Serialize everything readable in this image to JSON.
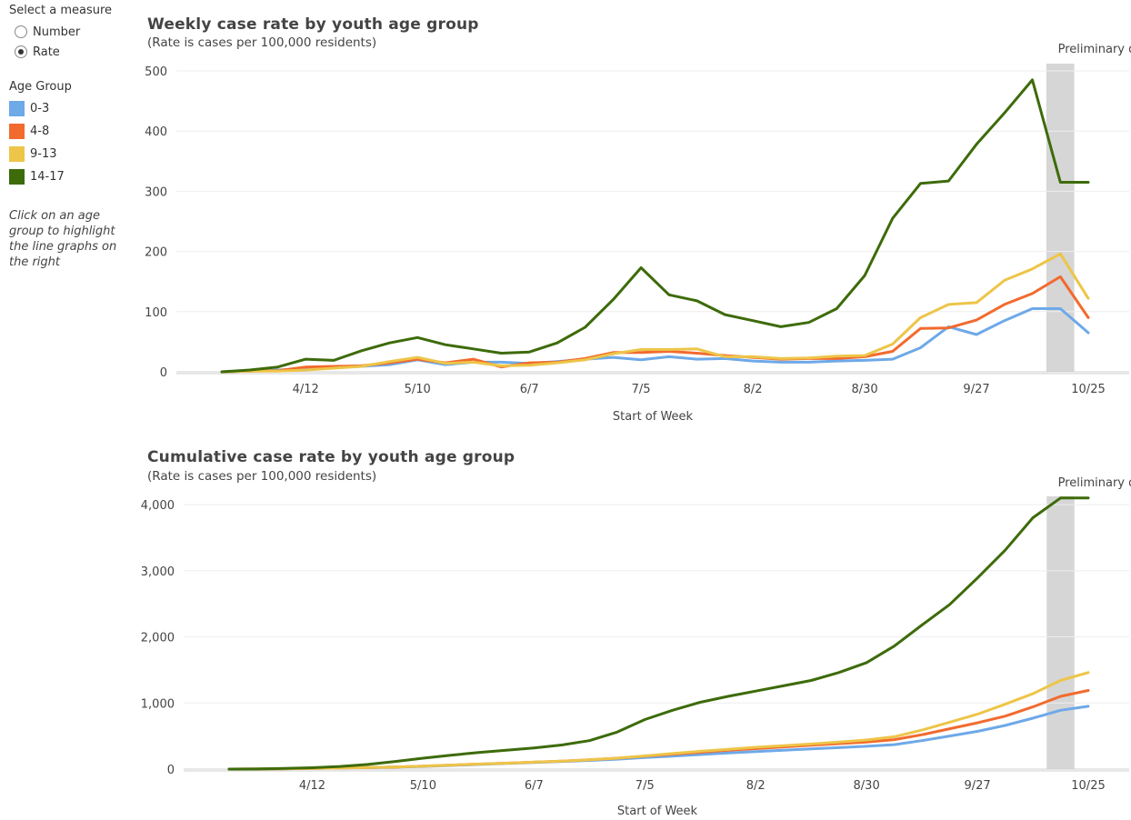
{
  "sidebar": {
    "measure_label": "Select a measure",
    "options": [
      {
        "label": "Number",
        "selected": false
      },
      {
        "label": "Rate",
        "selected": true
      }
    ],
    "age_group_label": "Age Group",
    "note": "Click on an age group to highlight the line graphs on the right"
  },
  "chart_data": [
    {
      "type": "line",
      "title": "Weekly case rate by youth age group",
      "subtitle": "(Rate is cases per 100,000 residents)",
      "xlabel": "Start of Week",
      "ylabel": "",
      "x": [
        "3/22",
        "3/29",
        "4/5",
        "4/12",
        "4/19",
        "4/26",
        "5/3",
        "5/10",
        "5/17",
        "5/24",
        "5/31",
        "6/7",
        "6/14",
        "6/21",
        "6/28",
        "7/5",
        "7/12",
        "7/19",
        "7/26",
        "8/2",
        "8/9",
        "8/16",
        "8/23",
        "8/30",
        "9/6",
        "9/13",
        "9/20",
        "9/27",
        "10/4",
        "10/11",
        "10/18",
        "10/25"
      ],
      "x_ticks": [
        "4/12",
        "5/10",
        "6/7",
        "7/5",
        "8/2",
        "8/30",
        "9/27",
        "10/25"
      ],
      "y_ticks": [
        0,
        100,
        200,
        300,
        400,
        500
      ],
      "ylim": [
        0,
        500
      ],
      "annotation": "Preliminary data",
      "preliminary_from": "10/18",
      "series": [
        {
          "name": "0-3",
          "color": "#6ea9e8",
          "values": [
            0,
            1,
            3,
            5,
            7,
            9,
            12,
            20,
            12,
            16,
            16,
            14,
            17,
            21,
            24,
            20,
            25,
            21,
            22,
            18,
            16,
            16,
            18,
            19,
            21,
            40,
            75,
            62,
            85,
            105,
            105,
            65
          ]
        },
        {
          "name": "4-8",
          "color": "#f26a2e",
          "values": [
            0,
            1,
            2,
            8,
            9,
            10,
            15,
            21,
            15,
            21,
            8,
            15,
            16,
            22,
            32,
            32,
            34,
            31,
            27,
            24,
            21,
            22,
            22,
            25,
            34,
            72,
            73,
            86,
            112,
            130,
            158,
            90
          ]
        },
        {
          "name": "9-13",
          "color": "#edc548",
          "values": [
            0,
            1,
            1,
            3,
            6,
            9,
            17,
            24,
            14,
            16,
            10,
            11,
            15,
            20,
            30,
            37,
            37,
            38,
            25,
            25,
            22,
            23,
            26,
            27,
            46,
            90,
            112,
            115,
            152,
            171,
            196,
            122
          ]
        },
        {
          "name": "14-17",
          "color": "#3d6b0a",
          "values": [
            0,
            3,
            8,
            21,
            19,
            35,
            48,
            57,
            45,
            38,
            31,
            33,
            48,
            74,
            120,
            173,
            128,
            118,
            95,
            85,
            75,
            82,
            105,
            160,
            255,
            313,
            317,
            378,
            430,
            485,
            315,
            315
          ]
        }
      ]
    },
    {
      "type": "line",
      "title": "Cumulative case rate by youth age group",
      "subtitle": "(Rate is cases per 100,000 residents)",
      "xlabel": "Start of Week",
      "ylabel": "",
      "x": [
        "3/22",
        "3/29",
        "4/5",
        "4/12",
        "4/19",
        "4/26",
        "5/3",
        "5/10",
        "5/17",
        "5/24",
        "5/31",
        "6/7",
        "6/14",
        "6/21",
        "6/28",
        "7/5",
        "7/12",
        "7/19",
        "7/26",
        "8/2",
        "8/9",
        "8/16",
        "8/23",
        "8/30",
        "9/6",
        "9/13",
        "9/20",
        "9/27",
        "10/4",
        "10/11",
        "10/18",
        "10/25"
      ],
      "x_ticks": [
        "4/12",
        "5/10",
        "6/7",
        "7/5",
        "8/2",
        "8/30",
        "9/27",
        "10/25"
      ],
      "y_ticks": [
        0,
        1000,
        2000,
        3000,
        4000
      ],
      "y_tick_labels": [
        "0",
        "1,000",
        "2,000",
        "3,000",
        "4,000"
      ],
      "ylim": [
        0,
        4400
      ],
      "annotation": "Preliminary data",
      "preliminary_from": "10/18",
      "series": [
        {
          "name": "0-3",
          "color": "#6ea9e8",
          "values": [
            0,
            2,
            5,
            10,
            15,
            22,
            30,
            40,
            55,
            70,
            85,
            100,
            115,
            130,
            150,
            175,
            195,
            220,
            245,
            265,
            285,
            305,
            325,
            345,
            370,
            430,
            500,
            570,
            660,
            770,
            890,
            950
          ]
        },
        {
          "name": "4-8",
          "color": "#f26a2e",
          "values": [
            0,
            2,
            5,
            10,
            16,
            24,
            32,
            45,
            60,
            75,
            90,
            105,
            120,
            140,
            165,
            195,
            225,
            255,
            285,
            310,
            335,
            360,
            385,
            410,
            445,
            520,
            610,
            700,
            800,
            940,
            1100,
            1190
          ]
        },
        {
          "name": "9-13",
          "color": "#edc548",
          "values": [
            0,
            2,
            5,
            10,
            16,
            24,
            32,
            45,
            60,
            75,
            90,
            105,
            120,
            140,
            165,
            200,
            235,
            270,
            300,
            330,
            355,
            380,
            410,
            440,
            490,
            590,
            710,
            830,
            980,
            1140,
            1340,
            1460
          ]
        },
        {
          "name": "14-17",
          "color": "#3d6b0a",
          "values": [
            0,
            2,
            10,
            20,
            40,
            70,
            115,
            165,
            210,
            250,
            285,
            320,
            365,
            430,
            560,
            750,
            890,
            1010,
            1100,
            1180,
            1260,
            1340,
            1460,
            1610,
            1860,
            2180,
            2490,
            2890,
            3310,
            3800,
            4100,
            4100
          ]
        }
      ]
    }
  ]
}
